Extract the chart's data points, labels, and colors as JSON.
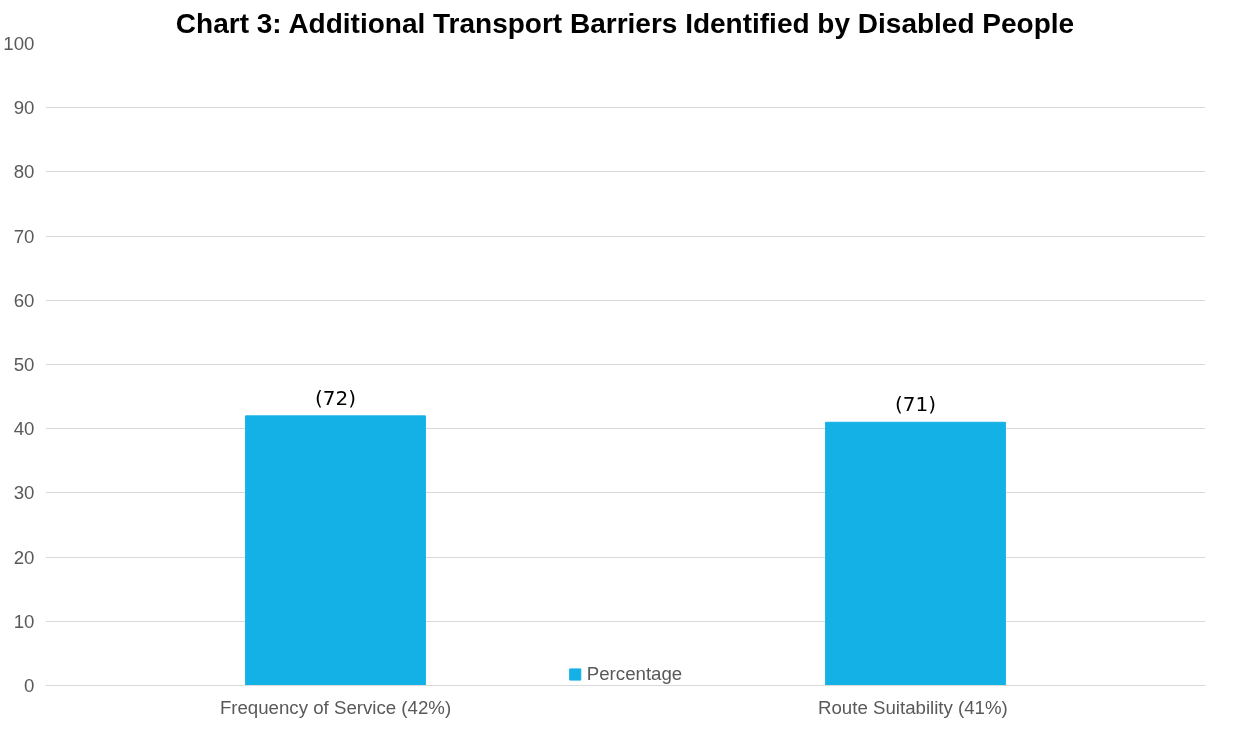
{
  "chart_data": {
    "type": "bar",
    "title": "Chart 3: Additional Transport Barriers Identified by Disabled People",
    "categories": [
      "Frequency of Service (42%)",
      "Route Suitability  (41%)"
    ],
    "series": [
      {
        "name": "Percentage",
        "color": "#14b1e7",
        "values": [
          42,
          41
        ]
      }
    ],
    "annotations": [
      {
        "text": "(72)",
        "x": "Frequency of Service (42%)",
        "y": 42
      },
      {
        "text": "(71)",
        "x": "Route Suitability  (41%)",
        "y": 41
      }
    ],
    "ylim": [
      0,
      100
    ],
    "yticks": [
      0,
      10,
      20,
      30,
      40,
      50,
      60,
      70,
      80,
      90,
      100
    ],
    "grid": "y",
    "legend": "bottom"
  }
}
